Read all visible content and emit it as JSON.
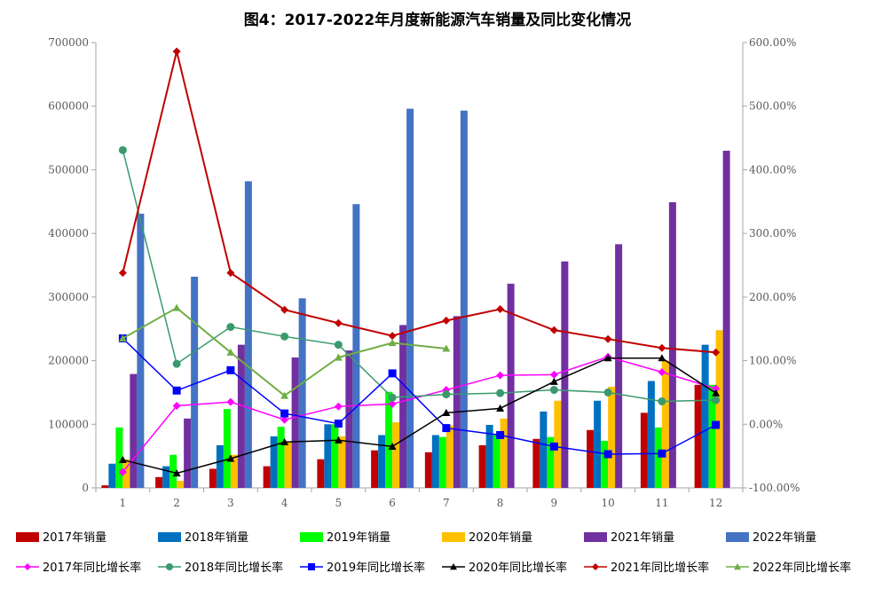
{
  "chart_data": {
    "type": "bar+line",
    "title": "图4：2017-2022年月度新能源汽车销量及同比变化情况",
    "categories": [
      "1",
      "2",
      "3",
      "4",
      "5",
      "6",
      "7",
      "8",
      "9",
      "10",
      "11",
      "12"
    ],
    "y_left": {
      "range": [
        0,
        700000
      ],
      "ticks": [
        "0",
        "100000",
        "200000",
        "300000",
        "400000",
        "500000",
        "600000",
        "700000"
      ]
    },
    "y_right": {
      "range": [
        -100,
        600
      ],
      "unit": "%",
      "ticks": [
        "-100.00%",
        "0.00%",
        "100.00%",
        "200.00%",
        "300.00%",
        "400.00%",
        "500.00%",
        "600.00%"
      ]
    },
    "grid": false,
    "legend_position": "bottom",
    "bar_series": [
      {
        "name": "2017年销量",
        "color": "#C00000",
        "values": [
          4000,
          17000,
          30000,
          34000,
          45000,
          59000,
          56000,
          67000,
          77000,
          91000,
          118000,
          162000
        ]
      },
      {
        "name": "2018年销量",
        "color": "#0070C0",
        "values": [
          38000,
          34000,
          67000,
          81000,
          100000,
          83000,
          83000,
          99000,
          120000,
          137000,
          168000,
          225000
        ]
      },
      {
        "name": "2019年销量",
        "color": "#00FF00",
        "values": [
          95000,
          52000,
          124000,
          96000,
          100000,
          151000,
          80000,
          84000,
          80000,
          74000,
          95000,
          162000
        ]
      },
      {
        "name": "2020年销量",
        "color": "#FFC000",
        "values": [
          45000,
          11000,
          52000,
          73000,
          81000,
          103000,
          98000,
          109000,
          137000,
          159000,
          200000,
          248000
        ]
      },
      {
        "name": "2021年销量",
        "color": "#7030A0",
        "values": [
          179000,
          109000,
          225000,
          205000,
          216000,
          256000,
          270000,
          321000,
          356000,
          383000,
          449000,
          530000
        ]
      },
      {
        "name": "2022年销量",
        "color": "#4472C4",
        "values": [
          431000,
          332000,
          482000,
          298000,
          446000,
          596000,
          593000,
          null,
          null,
          null,
          null,
          null
        ]
      }
    ],
    "line_series": [
      {
        "name": "2017年同比增长率",
        "color": "#FF00FF",
        "marker": "diamond",
        "values": [
          -75,
          29,
          35,
          7,
          28,
          32,
          54,
          77,
          78,
          106,
          82,
          56
        ]
      },
      {
        "name": "2018年同比增长率",
        "color": "#3A9A6E",
        "marker": "circle",
        "values": [
          431,
          95,
          153,
          138,
          125,
          42,
          47,
          49,
          54,
          50,
          36,
          38
        ]
      },
      {
        "name": "2019年同比增长率",
        "color": "#0000FF",
        "marker": "square",
        "values": [
          135,
          53,
          85,
          17,
          1,
          80,
          -6,
          -17,
          -35,
          -47,
          -46,
          -1
        ]
      },
      {
        "name": "2020年同比增长率",
        "color": "#000000",
        "marker": "triangle",
        "values": [
          -56,
          -77,
          -54,
          -28,
          -25,
          -35,
          18,
          25,
          67,
          104,
          104,
          49
        ]
      },
      {
        "name": "2021年同比增长率",
        "color": "#C00000",
        "marker": "diamond",
        "values": [
          238,
          586,
          238,
          180,
          159,
          139,
          163,
          181,
          148,
          134,
          120,
          113
        ]
      },
      {
        "name": "2022年同比增长率",
        "color": "#70AD47",
        "marker": "triangle",
        "values": [
          135,
          183,
          113,
          45,
          105,
          128,
          119,
          null,
          null,
          null,
          null,
          null
        ]
      }
    ]
  }
}
